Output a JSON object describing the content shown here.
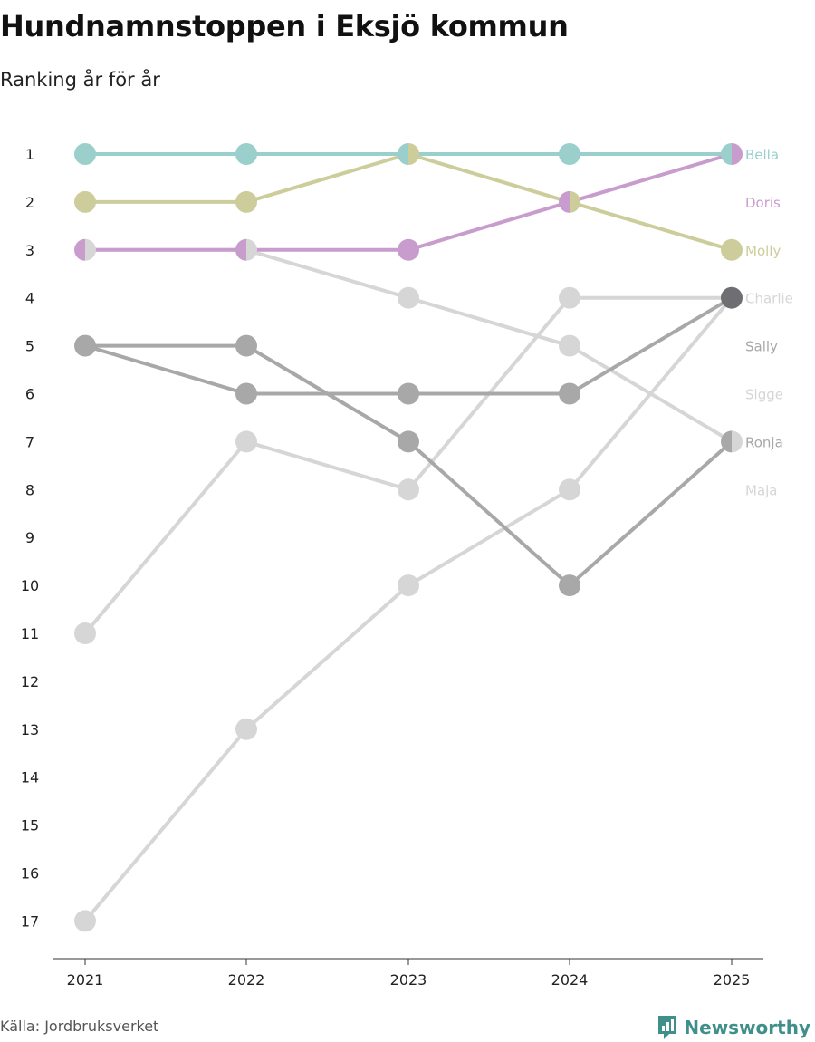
{
  "title": "Hundnamnstoppen i Eksjö kommun",
  "subtitle": "Ranking år för år",
  "source": "Källa: Jordbruksverket",
  "brand": "Newsworthy",
  "colors": {
    "Bella": "#9acfcc",
    "Doris": "#c89ccd",
    "Molly": "#cdcd9c",
    "Charlie": "#d6d6d6",
    "Sally": "#a8a8a8",
    "Sigge": "#d6d6d6",
    "Ronja": "#a8a8a8",
    "Maja": "#d6d6d6",
    "highlight": "#6e6e73",
    "brand": "#3f8f8b"
  },
  "chart_data": {
    "type": "line",
    "title": "Hundnamnstoppen i Eksjö kommun",
    "subtitle": "Ranking år för år",
    "xlabel": "",
    "ylabel": "",
    "categories": [
      "2021",
      "2022",
      "2023",
      "2024",
      "2025"
    ],
    "y_ticks": [
      1,
      2,
      3,
      4,
      5,
      6,
      7,
      8,
      9,
      10,
      11,
      12,
      13,
      14,
      15,
      16,
      17
    ],
    "ylim": [
      17,
      1
    ],
    "series": [
      {
        "name": "Bella",
        "values": [
          1,
          1,
          1,
          1,
          1
        ]
      },
      {
        "name": "Doris",
        "values": [
          3,
          3,
          3,
          2,
          1
        ]
      },
      {
        "name": "Molly",
        "values": [
          2,
          2,
          1,
          2,
          3
        ]
      },
      {
        "name": "Charlie",
        "values": [
          17,
          13,
          10,
          8,
          4
        ]
      },
      {
        "name": "Sally",
        "values": [
          5,
          6,
          6,
          6,
          4
        ]
      },
      {
        "name": "Sigge",
        "values": [
          11,
          7,
          8,
          4,
          4
        ]
      },
      {
        "name": "Ronja",
        "values": [
          5,
          5,
          7,
          10,
          7
        ]
      },
      {
        "name": "Maja",
        "values": [
          3,
          3,
          4,
          5,
          7
        ]
      }
    ],
    "end_labels": [
      {
        "name": "Bella",
        "rank": 1
      },
      {
        "name": "Doris",
        "rank": 2
      },
      {
        "name": "Molly",
        "rank": 3
      },
      {
        "name": "Charlie",
        "rank": 4
      },
      {
        "name": "Sally",
        "rank": 5
      },
      {
        "name": "Sigge",
        "rank": 6
      },
      {
        "name": "Ronja",
        "rank": 7
      },
      {
        "name": "Maja",
        "rank": 8
      }
    ]
  }
}
